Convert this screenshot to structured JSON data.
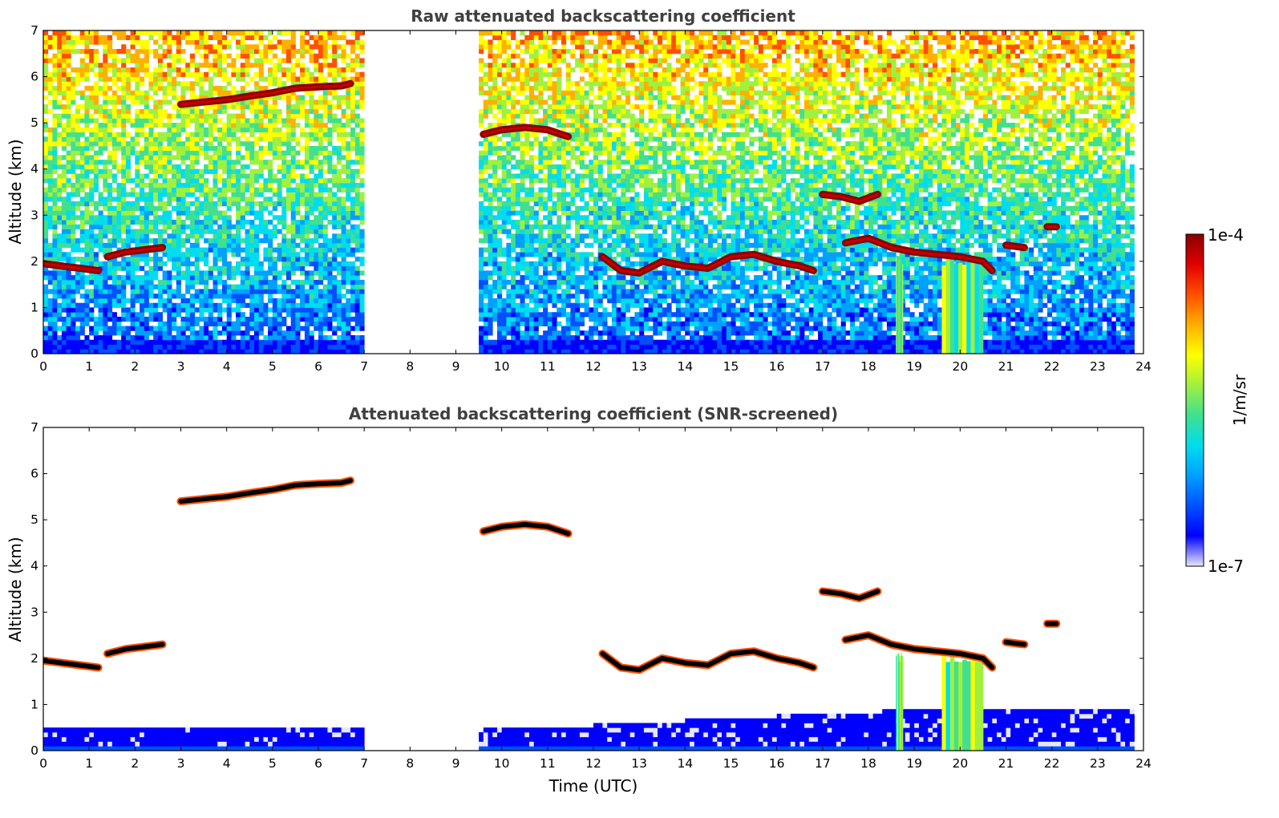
{
  "colors": {
    "ramp": [
      "#e6e6fa",
      "#0000ff",
      "#0050ff",
      "#00a0ff",
      "#00ddee",
      "#40e090",
      "#a0f040",
      "#ffff00",
      "#ffb000",
      "#ff5000",
      "#e00000",
      "#8b0000"
    ],
    "cloud_core": "#000000",
    "axis": "#000000",
    "title_text": "#404040"
  },
  "colorbar": {
    "label": "1/m/sr",
    "max_label": "1e-4",
    "min_label": "1e-7",
    "scale": "log",
    "range": [
      1e-07,
      0.0001
    ]
  },
  "chart_data": [
    {
      "type": "heatmap",
      "title": "Raw attenuated backscattering coefficient",
      "xlabel": "",
      "ylabel": "Altitude (km)",
      "xlim": [
        0,
        24
      ],
      "ylim": [
        0,
        7
      ],
      "xticks": [
        "0",
        "1",
        "2",
        "3",
        "4",
        "5",
        "6",
        "7",
        "8",
        "9",
        "10",
        "11",
        "12",
        "13",
        "14",
        "15",
        "16",
        "17",
        "18",
        "19",
        "20",
        "21",
        "22",
        "23",
        "24"
      ],
      "yticks": [
        "0",
        "1",
        "2",
        "3",
        "4",
        "5",
        "6",
        "7"
      ],
      "data_gaps": [
        [
          7.0,
          9.55
        ],
        [
          23.8,
          24.0
        ]
      ],
      "cloud_layers": [
        {
          "x": [
            0.0,
            0.4,
            0.8,
            1.2
          ],
          "y": [
            1.95,
            1.9,
            1.85,
            1.8
          ]
        },
        {
          "x": [
            1.4,
            1.8,
            2.2,
            2.6
          ],
          "y": [
            2.1,
            2.2,
            2.25,
            2.3
          ]
        },
        {
          "x": [
            3.0,
            3.5,
            4.0,
            4.5,
            5.0,
            5.5,
            6.0,
            6.5,
            6.7
          ],
          "y": [
            5.4,
            5.45,
            5.5,
            5.58,
            5.65,
            5.75,
            5.78,
            5.8,
            5.85
          ]
        },
        {
          "x": [
            9.6,
            10.0,
            10.5,
            11.0,
            11.45
          ],
          "y": [
            4.75,
            4.85,
            4.9,
            4.85,
            4.7
          ]
        },
        {
          "x": [
            12.2,
            12.6,
            13.0,
            13.5,
            14.0,
            14.5,
            15.0,
            15.5,
            16.0,
            16.5,
            16.8
          ],
          "y": [
            2.1,
            1.8,
            1.75,
            2.0,
            1.9,
            1.85,
            2.1,
            2.15,
            2.0,
            1.9,
            1.8
          ]
        },
        {
          "x": [
            17.0,
            17.4,
            17.8,
            18.2
          ],
          "y": [
            3.45,
            3.4,
            3.3,
            3.45
          ]
        },
        {
          "x": [
            17.5,
            18.0,
            18.5,
            19.0,
            19.5,
            20.0,
            20.5,
            20.7
          ],
          "y": [
            2.4,
            2.5,
            2.3,
            2.2,
            2.15,
            2.1,
            2.0,
            1.8
          ]
        },
        {
          "x": [
            21.0,
            21.4
          ],
          "y": [
            2.35,
            2.3
          ]
        },
        {
          "x": [
            21.9,
            22.1
          ],
          "y": [
            2.75,
            2.75
          ]
        }
      ],
      "precipitation": [
        [
          18.6,
          18.75
        ],
        [
          19.6,
          20.5
        ]
      ]
    },
    {
      "type": "heatmap",
      "title": "Attenuated backscattering coefficient (SNR-screened)",
      "xlabel": "Time (UTC)",
      "ylabel": "Altitude (km)",
      "xlim": [
        0,
        24
      ],
      "ylim": [
        0,
        7
      ],
      "xticks": [
        "0",
        "1",
        "2",
        "3",
        "4",
        "5",
        "6",
        "7",
        "8",
        "9",
        "10",
        "11",
        "12",
        "13",
        "14",
        "15",
        "16",
        "17",
        "18",
        "19",
        "20",
        "21",
        "22",
        "23",
        "24"
      ],
      "yticks": [
        "0",
        "1",
        "2",
        "3",
        "4",
        "5",
        "6",
        "7"
      ],
      "data_gaps": [
        [
          7.0,
          9.55
        ],
        [
          23.8,
          24.0
        ]
      ],
      "boundary_layer_top_km": [
        [
          0,
          0.55
        ],
        [
          7,
          0.5
        ],
        [
          9.55,
          0.45
        ],
        [
          12,
          0.55
        ],
        [
          17,
          0.8
        ],
        [
          21,
          0.95
        ],
        [
          23.8,
          0.95
        ]
      ],
      "precipitation": [
        [
          18.6,
          18.75
        ],
        [
          19.6,
          20.5
        ]
      ]
    }
  ]
}
